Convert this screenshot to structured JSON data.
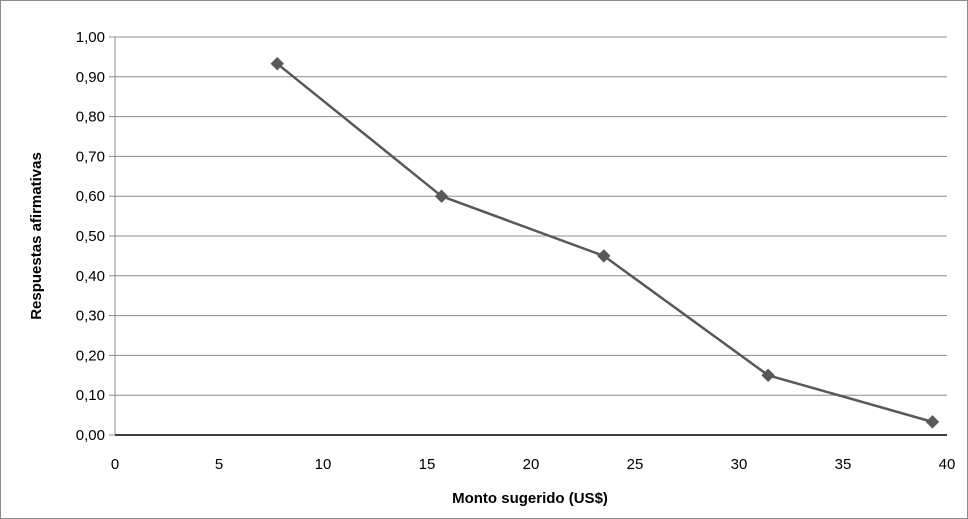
{
  "chart_data": {
    "type": "line",
    "title": "",
    "xlabel": "Monto sugerido (US$)",
    "ylabel": "Respuestas afirmativas",
    "xlim": [
      0,
      40
    ],
    "ylim": [
      0,
      1.0
    ],
    "x_ticks": [
      "0",
      "5",
      "10",
      "15",
      "20",
      "25",
      "30",
      "35",
      "40"
    ],
    "y_ticks": [
      "0,00",
      "0,10",
      "0,20",
      "0,30",
      "0,40",
      "0,50",
      "0,60",
      "0,70",
      "0,80",
      "0,90",
      "1,00"
    ],
    "grid": "horizontal",
    "legend": "none",
    "series": [
      {
        "x": [
          7.8,
          15.7,
          23.5,
          31.4,
          39.3
        ],
        "values": [
          0.933,
          0.6,
          0.45,
          0.15,
          0.033
        ],
        "color": "#595959",
        "marker": "diamond"
      }
    ]
  }
}
